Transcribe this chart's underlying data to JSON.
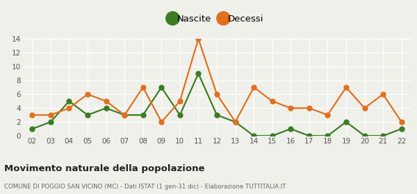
{
  "years": [
    2,
    3,
    4,
    5,
    6,
    7,
    8,
    9,
    10,
    11,
    12,
    13,
    14,
    15,
    16,
    17,
    18,
    19,
    20,
    21,
    22
  ],
  "nascite": [
    1,
    2,
    5,
    3,
    4,
    3,
    3,
    7,
    3,
    9,
    3,
    2,
    0,
    0,
    1,
    0,
    0,
    2,
    0,
    0,
    1
  ],
  "decessi": [
    3,
    3,
    4,
    6,
    5,
    3,
    7,
    2,
    5,
    14,
    6,
    2,
    7,
    5,
    4,
    4,
    3,
    7,
    4,
    6,
    2
  ],
  "nascite_color": "#3a7d23",
  "decessi_color": "#e07020",
  "bg_color": "#f0f0eb",
  "grid_color": "#ffffff",
  "title_main": "Movimento naturale della popolazione",
  "title_sub": "COMUNE DI POGGIO SAN VICINO (MC) - Dati ISTAT (1 gen-31 dic) - Elaborazione TUTTITALIA.IT",
  "ylim": [
    0,
    14
  ],
  "yticks": [
    0,
    2,
    4,
    6,
    8,
    10,
    12,
    14
  ],
  "marker_size": 5,
  "line_width": 1.6,
  "legend_marker_size": 14
}
